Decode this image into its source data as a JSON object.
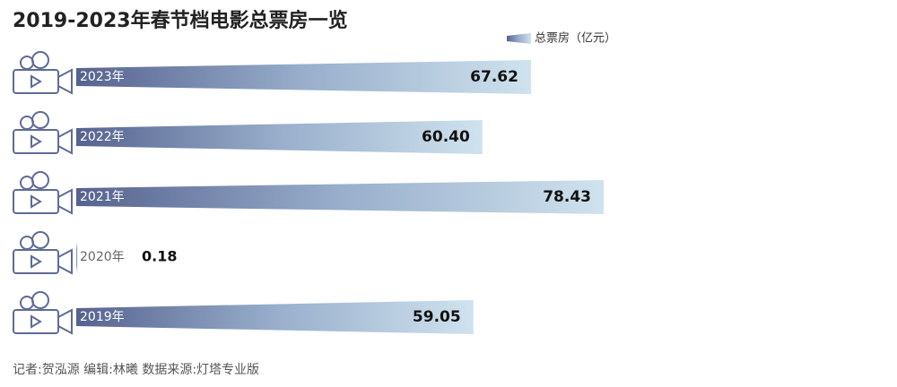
{
  "chart_data": {
    "type": "bar",
    "orientation": "horizontal",
    "title": "2019-2023年春节档电影总票房一览",
    "legend": "总票房（亿元）",
    "categories": [
      "2023年",
      "2022年",
      "2021年",
      "2020年",
      "2019年"
    ],
    "values": [
      67.62,
      60.4,
      78.43,
      0.18,
      59.05
    ],
    "value_labels": [
      "67.62",
      "60.40",
      "78.43",
      "0.18",
      "59.05"
    ],
    "note": "记者:贺泓源  编辑:林曦  数据来源:灯塔专业版"
  }
}
